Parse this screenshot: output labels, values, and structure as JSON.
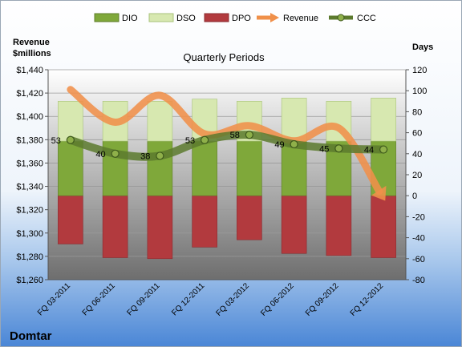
{
  "chart_data": {
    "type": "bar",
    "title": "Quarterly Periods",
    "company": "Domtar",
    "left_axis_label_line1": "Revenue",
    "left_axis_label_line2": "$millions",
    "right_axis_label": "Days",
    "categories": [
      "FQ 03-2011",
      "FQ 06-2011",
      "FQ 09-2011",
      "FQ 12-2011",
      "FQ 03-2012",
      "FQ 06-2012",
      "FQ 09-2012",
      "FQ 12-2012"
    ],
    "left_axis": {
      "min": 1260,
      "max": 1440,
      "step": 20,
      "format": "currency"
    },
    "right_axis": {
      "min": -80,
      "max": 120,
      "step": 20
    },
    "series": [
      {
        "name": "DIO",
        "chart": "stacked-bar",
        "axis": "right",
        "color": "#7fa83a",
        "values": [
          52,
          52,
          52,
          52,
          52,
          52,
          52,
          52
        ]
      },
      {
        "name": "DSO",
        "chart": "stacked-bar",
        "axis": "right",
        "color": "#d7e8b0",
        "values": [
          38,
          38,
          38,
          40,
          38,
          41,
          38,
          41
        ]
      },
      {
        "name": "DPO",
        "chart": "stacked-bar",
        "axis": "right",
        "color": "#b23a3e",
        "values": [
          -46,
          -59,
          -60,
          -49,
          -42,
          -55,
          -57,
          -59
        ]
      },
      {
        "name": "Revenue",
        "chart": "line",
        "axis": "left",
        "color": "#f0904a",
        "values": [
          1423,
          1395,
          1418,
          1385,
          1392,
          1379,
          1390,
          1330
        ]
      },
      {
        "name": "CCC",
        "chart": "line",
        "axis": "right",
        "color": "#5c7a2e",
        "values": [
          53,
          40,
          38,
          53,
          58,
          49,
          45,
          44
        ],
        "labels": [
          "53",
          "40",
          "38",
          "53",
          "58",
          "49",
          "45",
          "44"
        ]
      }
    ],
    "grid": true,
    "legend_position": "top"
  }
}
